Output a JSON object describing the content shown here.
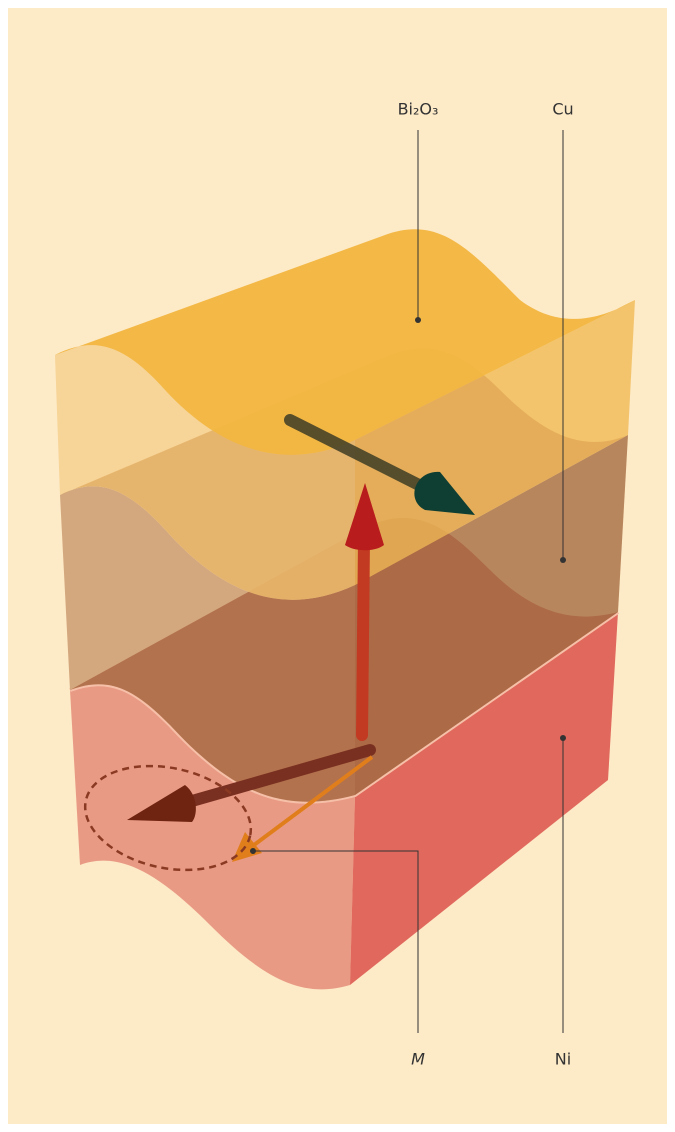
{
  "labels": [
    {
      "text": "Bi₂O₃"
    },
    {
      "text": "Cu"
    },
    {
      "text": "M"
    },
    {
      "text": "Ni"
    }
  ]
}
